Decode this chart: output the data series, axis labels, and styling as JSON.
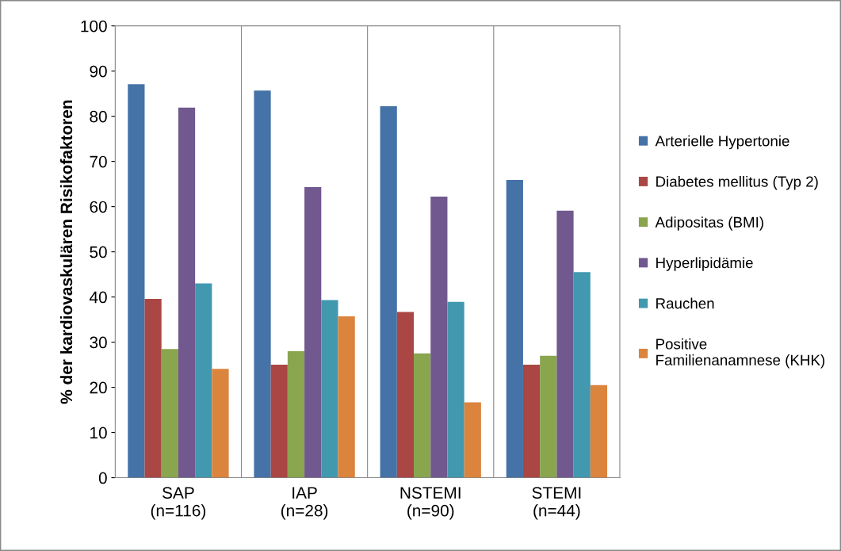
{
  "chart_data": {
    "type": "bar",
    "ylabel": "% der kardiovaskulären Risikofaktoren",
    "categories": [
      "SAP\n(n=116)",
      "IAP\n(n=28)",
      "NSTEMI\n(n=90)",
      "STEMI\n(n=44)"
    ],
    "series": [
      {
        "name": "Arterielle Hypertonie",
        "color": "#4572a7",
        "values": [
          87.1,
          85.7,
          82.2,
          65.9
        ]
      },
      {
        "name": "Diabetes mellitus (Typ 2)",
        "color": "#aa4643",
        "values": [
          39.6,
          25.0,
          36.7,
          25.0
        ]
      },
      {
        "name": "Adipositas (BMI)",
        "color": "#89a54e",
        "values": [
          28.5,
          28.0,
          27.5,
          27.0
        ]
      },
      {
        "name": "Hyperlipidämie",
        "color": "#71588f",
        "values": [
          81.9,
          64.3,
          62.2,
          59.1
        ]
      },
      {
        "name": "Rauchen",
        "color": "#4198af",
        "values": [
          43.0,
          39.3,
          38.9,
          45.5
        ]
      },
      {
        "name": "Positive\nFamilienanamnese (KHK)",
        "color": "#db843d",
        "values": [
          24.1,
          35.7,
          16.7,
          20.5
        ]
      }
    ],
    "ylim": [
      0,
      100
    ],
    "yticks": [
      0,
      10,
      20,
      30,
      40,
      50,
      60,
      70,
      80,
      90,
      100
    ],
    "grid": "x",
    "legend": "right"
  }
}
